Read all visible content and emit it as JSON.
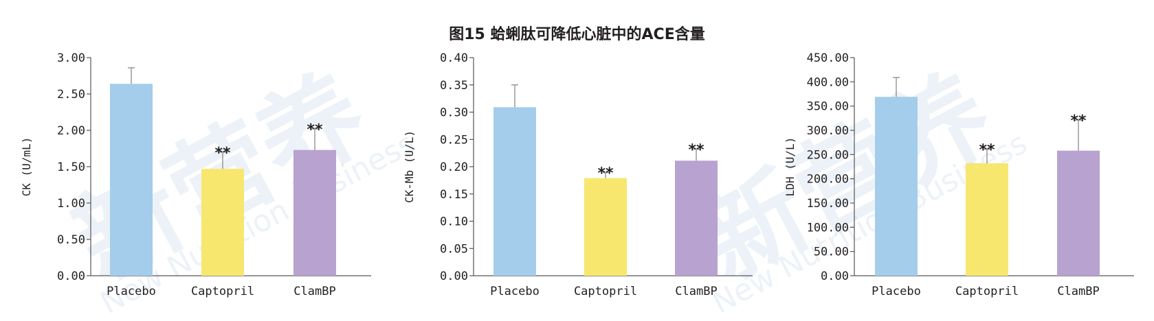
{
  "figure_title": "图15 蛤蜊肽可降低心脏中的ACE含量",
  "watermark": {
    "cn": "新营养",
    "en": "New Nutrition Business"
  },
  "colors": {
    "placebo": "#a3cdeb",
    "captopril": "#f7e76e",
    "clambp": "#b8a2d0",
    "axis": "#555555",
    "text": "#231f20"
  },
  "chart_data": [
    {
      "type": "bar",
      "categories": [
        "Placebo",
        "Captopril",
        "ClamBP"
      ],
      "values": [
        2.64,
        1.47,
        1.73
      ],
      "errors": [
        0.22,
        0.23,
        0.29
      ],
      "sig": [
        "",
        "**",
        "**"
      ],
      "ylabel": "CK (U/mL)",
      "ylim": [
        0,
        3
      ],
      "yticks": [
        "0.00",
        "0.50",
        "1.00",
        "1.50",
        "2.00",
        "2.50",
        "3.00"
      ],
      "grid": false
    },
    {
      "type": "bar",
      "categories": [
        "Placebo",
        "Captopril",
        "ClamBP"
      ],
      "values": [
        0.309,
        0.179,
        0.211
      ],
      "errors": [
        0.041,
        0.01,
        0.021
      ],
      "sig": [
        "",
        "**",
        "**"
      ],
      "ylabel": "CK-Mb (U/L)",
      "ylim": [
        0,
        0.4
      ],
      "yticks": [
        "0.00",
        "0.05",
        "0.10",
        "0.15",
        "0.20",
        "0.25",
        "0.30",
        "0.35",
        "0.40"
      ],
      "grid": false
    },
    {
      "type": "bar",
      "categories": [
        "Placebo",
        "Captopril",
        "ClamBP"
      ],
      "values": [
        369,
        232,
        258
      ],
      "errors": [
        40,
        29,
        63
      ],
      "sig": [
        "",
        "**",
        "**"
      ],
      "ylabel": "LDH (U/L)",
      "ylim": [
        0,
        450
      ],
      "yticks": [
        "0.00",
        "50.00",
        "100.00",
        "150.00",
        "200.00",
        "250.00",
        "300.00",
        "350.00",
        "400.00",
        "450.00"
      ],
      "grid": false
    }
  ]
}
